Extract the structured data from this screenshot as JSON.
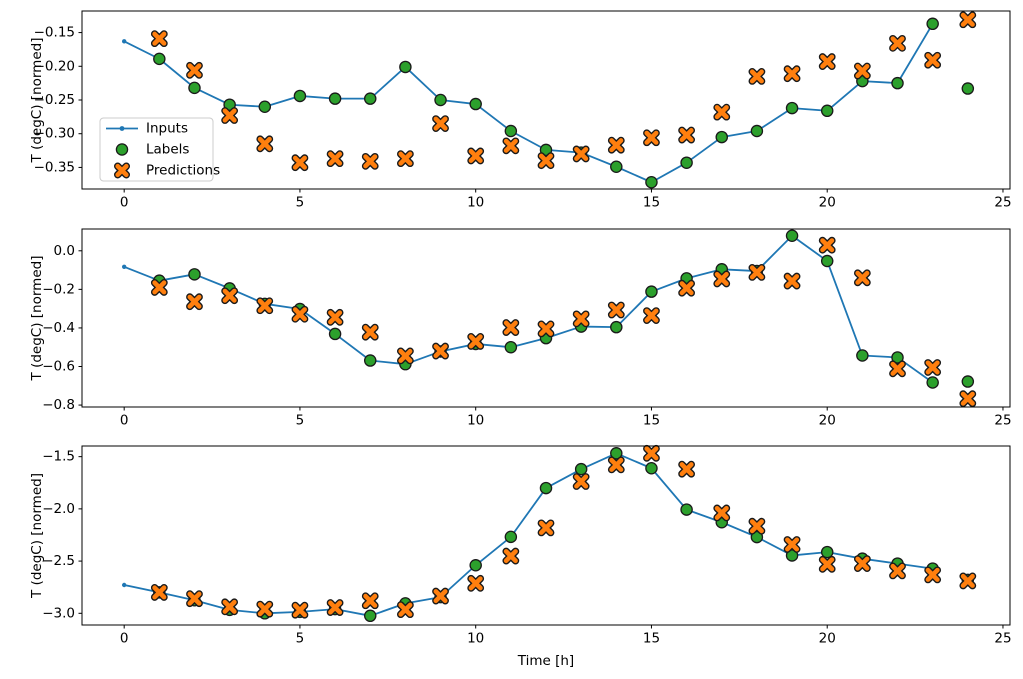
{
  "figure": {
    "background": "#ffffff",
    "colors": {
      "inputs": "#1f77b4",
      "labels": "#2ca02c",
      "predictions": "#ff7f0e",
      "marker_edge": "#1a1a1a",
      "spine": "#000000",
      "legend_edge": "#cccccc"
    },
    "legend": {
      "items": [
        {
          "label": "Inputs",
          "style": "line-dot",
          "color": "#1f77b4"
        },
        {
          "label": "Labels",
          "style": "circle",
          "color": "#2ca02c"
        },
        {
          "label": "Predictions",
          "style": "x",
          "color": "#ff7f0e"
        }
      ]
    }
  },
  "chart_data": [
    {
      "type": "line",
      "title": "",
      "xlabel": "",
      "ylabel": "T (degC) [normed]",
      "xlim": [
        -1.2,
        25.2
      ],
      "ylim": [
        -0.382,
        -0.118
      ],
      "xticks": [
        0,
        5,
        10,
        15,
        20,
        25
      ],
      "xtick_labels": [
        "0",
        "5",
        "10",
        "15",
        "20",
        "25"
      ],
      "yticks": [
        -0.15,
        -0.2,
        -0.25,
        -0.3,
        -0.35
      ],
      "ytick_labels": [
        "−0.15",
        "−0.20",
        "−0.25",
        "−0.30",
        "−0.35"
      ],
      "grid": false,
      "legend_visible": true,
      "series": [
        {
          "name": "Inputs",
          "type": "line-dot",
          "color": "#1f77b4",
          "x": [
            0,
            1,
            2,
            3,
            4,
            5,
            6,
            7,
            8,
            9,
            10,
            11,
            12,
            13,
            14,
            15,
            16,
            17,
            18,
            19,
            20,
            21,
            22,
            23
          ],
          "y": [
            -0.163,
            -0.189,
            -0.232,
            -0.257,
            -0.26,
            -0.244,
            -0.248,
            -0.248,
            -0.201,
            -0.25,
            -0.256,
            -0.296,
            -0.324,
            -0.328,
            -0.349,
            -0.372,
            -0.343,
            -0.305,
            -0.296,
            -0.262,
            -0.266,
            -0.222,
            -0.225,
            -0.137
          ]
        },
        {
          "name": "Labels",
          "type": "scatter-circle",
          "color": "#2ca02c",
          "edge": "#1a1a1a",
          "x": [
            1,
            2,
            3,
            4,
            5,
            6,
            7,
            8,
            9,
            10,
            11,
            12,
            13,
            14,
            15,
            16,
            17,
            18,
            19,
            20,
            21,
            22,
            23,
            24
          ],
          "y": [
            -0.189,
            -0.232,
            -0.257,
            -0.26,
            -0.244,
            -0.248,
            -0.248,
            -0.201,
            -0.25,
            -0.256,
            -0.296,
            -0.324,
            -0.328,
            -0.349,
            -0.372,
            -0.343,
            -0.305,
            -0.296,
            -0.262,
            -0.266,
            -0.222,
            -0.225,
            -0.137,
            -0.233
          ]
        },
        {
          "name": "Predictions",
          "type": "scatter-x",
          "color": "#ff7f0e",
          "edge": "#1a1a1a",
          "x": [
            1,
            2,
            3,
            4,
            5,
            6,
            7,
            8,
            9,
            10,
            11,
            12,
            13,
            14,
            15,
            16,
            17,
            18,
            19,
            20,
            21,
            22,
            23,
            24
          ],
          "y": [
            -0.159,
            -0.206,
            -0.273,
            -0.315,
            -0.343,
            -0.337,
            -0.341,
            -0.337,
            -0.285,
            -0.333,
            -0.318,
            -0.34,
            -0.33,
            -0.317,
            -0.306,
            -0.302,
            -0.268,
            -0.215,
            -0.211,
            -0.193,
            -0.207,
            -0.166,
            -0.191,
            -0.131
          ]
        }
      ]
    },
    {
      "type": "line",
      "title": "",
      "xlabel": "",
      "ylabel": "T (degC) [normed]",
      "xlim": [
        -1.2,
        25.2
      ],
      "ylim": [
        -0.81,
        0.113
      ],
      "xticks": [
        0,
        5,
        10,
        15,
        20,
        25
      ],
      "xtick_labels": [
        "0",
        "5",
        "10",
        "15",
        "20",
        "25"
      ],
      "yticks": [
        0.0,
        -0.2,
        -0.4,
        -0.6,
        -0.8
      ],
      "ytick_labels": [
        "0.0",
        "−0.2",
        "−0.4",
        "−0.6",
        "−0.8"
      ],
      "grid": false,
      "legend_visible": false,
      "series": [
        {
          "name": "Inputs",
          "type": "line-dot",
          "color": "#1f77b4",
          "x": [
            0,
            1,
            2,
            3,
            4,
            5,
            6,
            7,
            8,
            9,
            10,
            11,
            12,
            13,
            14,
            15,
            16,
            17,
            18,
            19,
            20,
            21,
            22,
            23
          ],
          "y": [
            -0.083,
            -0.155,
            -0.122,
            -0.195,
            -0.275,
            -0.302,
            -0.431,
            -0.569,
            -0.588,
            -0.522,
            -0.483,
            -0.5,
            -0.453,
            -0.393,
            -0.396,
            -0.212,
            -0.143,
            -0.096,
            -0.105,
            0.078,
            -0.053,
            -0.543,
            -0.553,
            -0.683
          ]
        },
        {
          "name": "Labels",
          "type": "scatter-circle",
          "color": "#2ca02c",
          "edge": "#1a1a1a",
          "x": [
            1,
            2,
            3,
            4,
            5,
            6,
            7,
            8,
            9,
            10,
            11,
            12,
            13,
            14,
            15,
            16,
            17,
            18,
            19,
            20,
            21,
            22,
            23,
            24
          ],
          "y": [
            -0.155,
            -0.122,
            -0.195,
            -0.275,
            -0.302,
            -0.431,
            -0.569,
            -0.588,
            -0.522,
            -0.483,
            -0.5,
            -0.453,
            -0.393,
            -0.396,
            -0.212,
            -0.143,
            -0.096,
            -0.105,
            0.078,
            -0.053,
            -0.543,
            -0.553,
            -0.683,
            -0.678
          ]
        },
        {
          "name": "Predictions",
          "type": "scatter-x",
          "color": "#ff7f0e",
          "edge": "#1a1a1a",
          "x": [
            1,
            2,
            3,
            4,
            5,
            6,
            7,
            8,
            9,
            10,
            11,
            12,
            13,
            14,
            15,
            16,
            17,
            18,
            19,
            20,
            21,
            22,
            23,
            24
          ],
          "y": [
            -0.19,
            -0.264,
            -0.233,
            -0.285,
            -0.329,
            -0.345,
            -0.422,
            -0.545,
            -0.52,
            -0.47,
            -0.398,
            -0.405,
            -0.353,
            -0.307,
            -0.336,
            -0.194,
            -0.146,
            -0.112,
            -0.157,
            0.029,
            -0.14,
            -0.612,
            -0.605,
            -0.767
          ]
        }
      ]
    },
    {
      "type": "line",
      "title": "",
      "xlabel": "Time [h]",
      "ylabel": "T (degC) [normed]",
      "xlim": [
        -1.2,
        25.2
      ],
      "ylim": [
        -3.112,
        -1.398
      ],
      "xticks": [
        0,
        5,
        10,
        15,
        20,
        25
      ],
      "xtick_labels": [
        "0",
        "5",
        "10",
        "15",
        "20",
        "25"
      ],
      "yticks": [
        -1.5,
        -2.0,
        -2.5,
        -3.0
      ],
      "ytick_labels": [
        "−1.5",
        "−2.0",
        "−2.5",
        "−3.0"
      ],
      "grid": false,
      "legend_visible": false,
      "series": [
        {
          "name": "Inputs",
          "type": "line-dot",
          "color": "#1f77b4",
          "x": [
            0,
            1,
            2,
            3,
            4,
            5,
            6,
            7,
            8,
            9,
            10,
            11,
            12,
            13,
            14,
            15,
            16,
            17,
            18,
            19,
            20,
            21,
            22,
            23
          ],
          "y": [
            -2.729,
            -2.8,
            -2.875,
            -2.967,
            -3.0,
            -2.986,
            -2.96,
            -3.024,
            -2.905,
            -2.845,
            -2.54,
            -2.268,
            -1.801,
            -1.62,
            -1.468,
            -1.611,
            -2.007,
            -2.128,
            -2.27,
            -2.446,
            -2.414,
            -2.477,
            -2.524,
            -2.572
          ]
        },
        {
          "name": "Labels",
          "type": "scatter-circle",
          "color": "#2ca02c",
          "edge": "#1a1a1a",
          "x": [
            1,
            2,
            3,
            4,
            5,
            6,
            7,
            8,
            9,
            10,
            11,
            12,
            13,
            14,
            15,
            16,
            17,
            18,
            19,
            20,
            21,
            22,
            23,
            24
          ],
          "y": [
            -2.8,
            -2.875,
            -2.967,
            -3.0,
            -2.986,
            -2.96,
            -3.024,
            -2.905,
            -2.845,
            -2.54,
            -2.268,
            -1.801,
            -1.62,
            -1.468,
            -1.611,
            -2.007,
            -2.128,
            -2.27,
            -2.446,
            -2.414,
            -2.477,
            -2.524,
            -2.572,
            -2.68
          ]
        },
        {
          "name": "Predictions",
          "type": "scatter-x",
          "color": "#ff7f0e",
          "edge": "#1a1a1a",
          "x": [
            1,
            2,
            3,
            4,
            5,
            6,
            7,
            8,
            9,
            10,
            11,
            12,
            13,
            14,
            15,
            16,
            17,
            18,
            19,
            20,
            21,
            22,
            23,
            24
          ],
          "y": [
            -2.8,
            -2.86,
            -2.938,
            -2.96,
            -2.97,
            -2.945,
            -2.88,
            -2.965,
            -2.835,
            -2.713,
            -2.452,
            -2.182,
            -1.738,
            -1.579,
            -1.468,
            -1.62,
            -2.039,
            -2.166,
            -2.341,
            -2.531,
            -2.524,
            -2.594,
            -2.632,
            -2.69
          ]
        }
      ]
    }
  ]
}
